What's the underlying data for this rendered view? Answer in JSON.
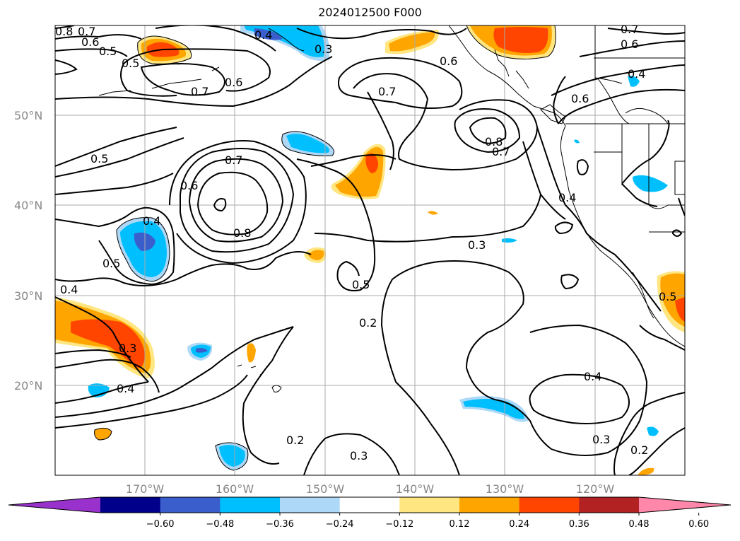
{
  "title": "2024012500 F000",
  "latitudes": [
    "50°N",
    "40°N",
    "30°N",
    "20°N"
  ],
  "longitudes": [
    "170°W",
    "160°W",
    "150°W",
    "140°W",
    "130°W",
    "120°W"
  ],
  "colorbar": {
    "ticks": [
      "−0.60",
      "−0.48",
      "−0.36",
      "−0.24",
      "−0.12",
      "0.12",
      "0.24",
      "0.36",
      "0.48",
      "0.60"
    ],
    "colors": [
      "#9932cc",
      "#00008b",
      "#3a5fcd",
      "#00bfff",
      "#add8f7",
      "#ffffff",
      "#ffe680",
      "#ffa500",
      "#ff4500",
      "#b22222",
      "#ff88aa"
    ]
  },
  "contour_labels": [
    "0.8",
    "0.7",
    "0.6",
    "0.5",
    "0.5",
    "0.7",
    "0.6",
    "0.4",
    "0.3",
    "0.6",
    "0.7",
    "0.7",
    "0.6",
    "0.6",
    "0.4",
    "0.8",
    "0.7",
    "0.5",
    "0.7",
    "0.6",
    "0.8",
    "0.4",
    "0.4",
    "0.5",
    "0.3",
    "0.5",
    "0.4",
    "0.3",
    "0.2",
    "0.4",
    "0.4",
    "0.5",
    "0.2",
    "0.3",
    "0.3",
    "0.2"
  ]
}
